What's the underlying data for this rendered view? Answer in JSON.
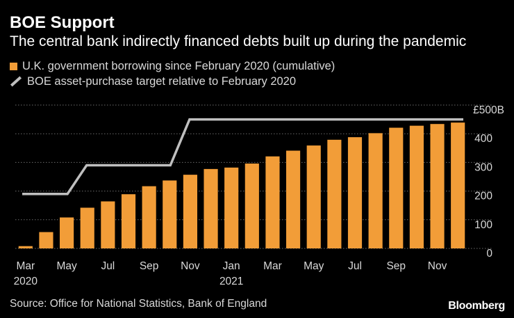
{
  "header": {
    "title": "BOE Support",
    "subtitle": "The central bank indirectly financed debts built up during the pandemic"
  },
  "footer": {
    "source": "Source: Office for National Statistics, Bank of England",
    "brand": "Bloomberg"
  },
  "colors": {
    "background": "#000000",
    "bar": "#f29d38",
    "line": "#bfbfbf",
    "grid": "#6b6b6b",
    "text": "#d9d9d9"
  },
  "chart_data": {
    "type": "bar",
    "unit_label": "£500B",
    "ylim": [
      0,
      500
    ],
    "yticks": [
      0,
      100,
      200,
      300,
      400
    ],
    "grid": true,
    "legend_position": "top-left",
    "categories": [
      "Mar 2020",
      "Apr 2020",
      "May 2020",
      "Jun 2020",
      "Jul 2020",
      "Aug 2020",
      "Sep 2020",
      "Oct 2020",
      "Nov 2020",
      "Dec 2020",
      "Jan 2021",
      "Feb 2021",
      "Mar 2021",
      "Apr 2021",
      "May 2021",
      "Jun 2021",
      "Jul 2021",
      "Aug 2021",
      "Sep 2021",
      "Oct 2021",
      "Nov 2021",
      "Dec 2021"
    ],
    "x_tick_labels": [
      {
        "index": 0,
        "month": "Mar",
        "year": "2020"
      },
      {
        "index": 2,
        "month": "May",
        "year": ""
      },
      {
        "index": 4,
        "month": "Jul",
        "year": ""
      },
      {
        "index": 6,
        "month": "Sep",
        "year": ""
      },
      {
        "index": 8,
        "month": "Nov",
        "year": ""
      },
      {
        "index": 10,
        "month": "Jan",
        "year": "2021"
      },
      {
        "index": 12,
        "month": "Mar",
        "year": ""
      },
      {
        "index": 14,
        "month": "May",
        "year": ""
      },
      {
        "index": 16,
        "month": "Jul",
        "year": ""
      },
      {
        "index": 18,
        "month": "Sep",
        "year": ""
      },
      {
        "index": 20,
        "month": "Nov",
        "year": ""
      }
    ],
    "series": [
      {
        "name": "U.K. government borrowing since February 2020 (cumulative)",
        "type": "bar",
        "values": [
          8,
          57,
          108,
          142,
          164,
          189,
          217,
          237,
          257,
          277,
          282,
          296,
          321,
          341,
          359,
          379,
          388,
          402,
          421,
          428,
          434,
          439
        ]
      },
      {
        "name": "BOE asset-purchase target relative to February 2020",
        "type": "step-line",
        "values": [
          190,
          190,
          190,
          290,
          290,
          290,
          290,
          290,
          450,
          450,
          450,
          450,
          450,
          450,
          450,
          450,
          450,
          450,
          450,
          450,
          450,
          450
        ]
      }
    ]
  }
}
